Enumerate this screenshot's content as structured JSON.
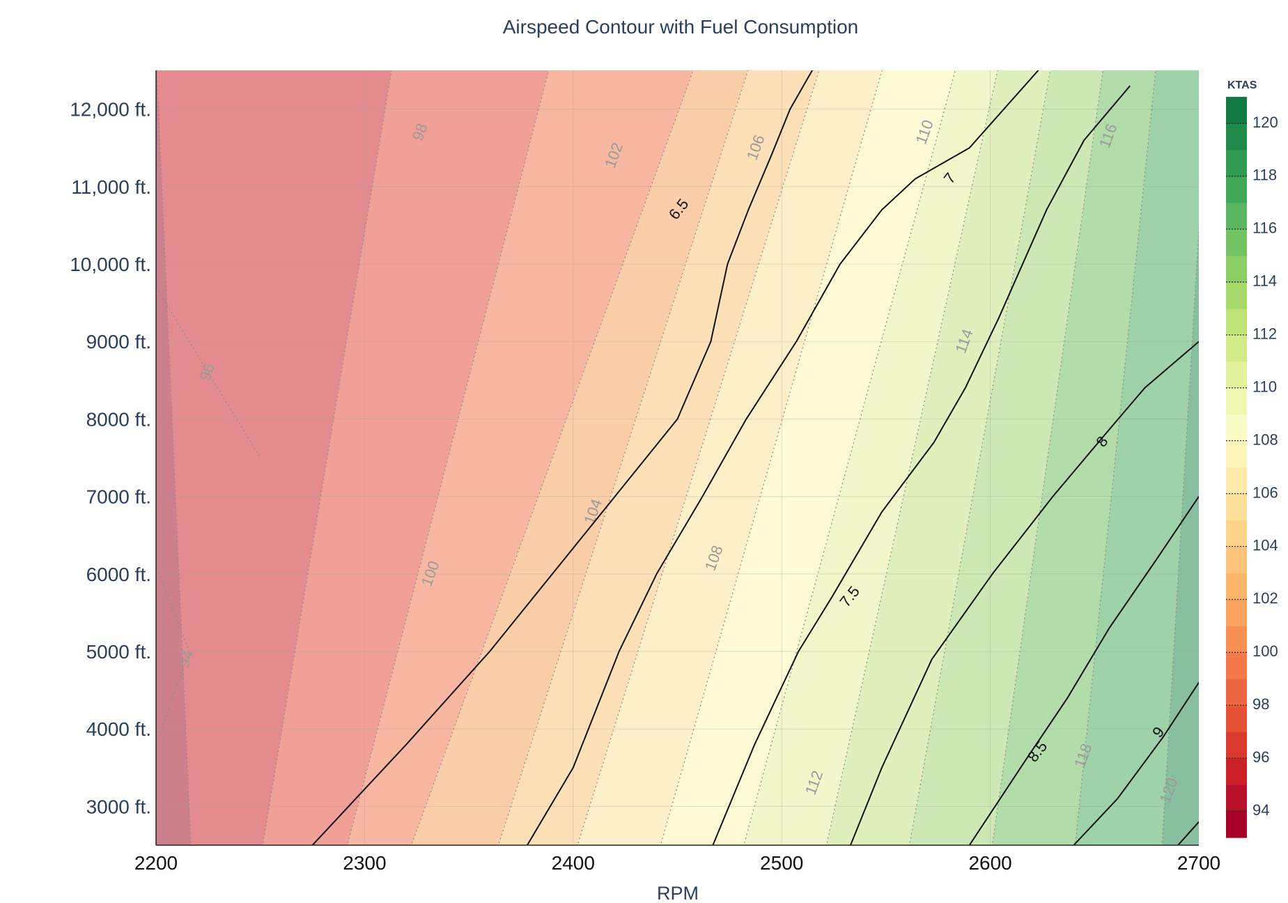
{
  "chart_data": {
    "type": "heatmap",
    "title": "Airspeed Contour with Fuel Consumption",
    "xlabel": "RPM",
    "ylabel": "",
    "xlim": [
      2200,
      2700
    ],
    "ylim": [
      2500,
      12500
    ],
    "x_ticks": [
      {
        "value": 2200,
        "label": "2200"
      },
      {
        "value": 2300,
        "label": "2300"
      },
      {
        "value": 2400,
        "label": "2400"
      },
      {
        "value": 2500,
        "label": "2500"
      },
      {
        "value": 2600,
        "label": "2600"
      },
      {
        "value": 2700,
        "label": "2700"
      }
    ],
    "y_ticks": [
      {
        "value": 3000,
        "label": "3000 ft."
      },
      {
        "value": 4000,
        "label": "4000 ft."
      },
      {
        "value": 5000,
        "label": "5000 ft."
      },
      {
        "value": 6000,
        "label": "6000 ft."
      },
      {
        "value": 7000,
        "label": "7000 ft."
      },
      {
        "value": 8000,
        "label": "8000 ft."
      },
      {
        "value": 9000,
        "label": "9000 ft."
      },
      {
        "value": 10000,
        "label": "10,000 ft."
      },
      {
        "value": 11000,
        "label": "11,000 ft."
      },
      {
        "value": 12000,
        "label": "12,000 ft."
      }
    ],
    "grid": true,
    "colorbar": {
      "title": "KTAS",
      "range": [
        93,
        121
      ],
      "colorscale": "RdYlGn",
      "ticks": [
        {
          "value": 94,
          "label": "94"
        },
        {
          "value": 96,
          "label": "96"
        },
        {
          "value": 98,
          "label": "98"
        },
        {
          "value": 100,
          "label": "100"
        },
        {
          "value": 102,
          "label": "102"
        },
        {
          "value": 104,
          "label": "104"
        },
        {
          "value": 106,
          "label": "106"
        },
        {
          "value": 108,
          "label": "108"
        },
        {
          "value": 110,
          "label": "110"
        },
        {
          "value": 112,
          "label": "112"
        },
        {
          "value": 114,
          "label": "114"
        },
        {
          "value": 116,
          "label": "116"
        },
        {
          "value": 118,
          "label": "118"
        },
        {
          "value": 120,
          "label": "120"
        }
      ]
    },
    "ktas_bands": [
      {
        "ktas": 94,
        "bottom_rpm": 2200,
        "top_rpm": 2200,
        "color": "#cd7f8c"
      },
      {
        "ktas": 96,
        "bottom_rpm": 2217,
        "top_rpm": 2200,
        "color": "#e38b8e"
      },
      {
        "ktas": 98,
        "bottom_rpm": 2250,
        "top_rpm": 2314,
        "color": "#f0a096"
      },
      {
        "ktas": 100,
        "bottom_rpm": 2290,
        "top_rpm": 2390,
        "color": "#f8b7a0"
      },
      {
        "ktas": 102,
        "bottom_rpm": 2320,
        "top_rpm": 2460,
        "color": "#fbceaa"
      },
      {
        "ktas": 104,
        "bottom_rpm": 2362,
        "top_rpm": 2486,
        "color": "#fde0b8"
      },
      {
        "ktas": 106,
        "bottom_rpm": 2400,
        "top_rpm": 2520,
        "color": "#fdf0c8"
      },
      {
        "ktas": 108,
        "bottom_rpm": 2440,
        "top_rpm": 2550,
        "color": "#fefad6"
      },
      {
        "ktas": 110,
        "bottom_rpm": 2480,
        "top_rpm": 2585,
        "color": "#f1f6cb"
      },
      {
        "ktas": 112,
        "bottom_rpm": 2520,
        "top_rpm": 2605,
        "color": "#e0f0bc"
      },
      {
        "ktas": 114,
        "bottom_rpm": 2560,
        "top_rpm": 2630,
        "color": "#cde8b5"
      },
      {
        "ktas": 116,
        "bottom_rpm": 2600,
        "top_rpm": 2655,
        "color": "#b3dcab"
      },
      {
        "ktas": 118,
        "bottom_rpm": 2640,
        "top_rpm": 2680,
        "color": "#9ed2a8"
      },
      {
        "ktas": 120,
        "bottom_rpm": 2682,
        "top_rpm": 2705,
        "color": "#88c09f"
      },
      {
        "ktas": 121,
        "bottom_rpm": 2700,
        "top_rpm": 2725,
        "color": "#7aaa8e"
      }
    ],
    "ktas_labels": [
      {
        "label": "94",
        "rpm": 2215,
        "alt": 4900
      },
      {
        "label": "96",
        "rpm": 2225,
        "alt": 8600
      },
      {
        "label": "98",
        "rpm": 2327,
        "alt": 11700
      },
      {
        "label": "100",
        "rpm": 2332,
        "alt": 6000
      },
      {
        "label": "102",
        "rpm": 2420,
        "alt": 11400
      },
      {
        "label": "104",
        "rpm": 2410,
        "alt": 6800
      },
      {
        "label": "106",
        "rpm": 2488,
        "alt": 11500
      },
      {
        "label": "108",
        "rpm": 2468,
        "alt": 6200
      },
      {
        "label": "110",
        "rpm": 2569,
        "alt": 11700
      },
      {
        "label": "112",
        "rpm": 2516,
        "alt": 3300
      },
      {
        "label": "114",
        "rpm": 2588,
        "alt": 9000
      },
      {
        "label": "116",
        "rpm": 2657,
        "alt": 11650
      },
      {
        "label": "118",
        "rpm": 2645,
        "alt": 3650
      },
      {
        "label": "120",
        "rpm": 2686,
        "alt": 3200
      }
    ],
    "fuel_contours": [
      {
        "label": "6.5",
        "points": [
          [
            2275,
            2500
          ],
          [
            2320,
            3800
          ],
          [
            2360,
            5000
          ],
          [
            2390,
            6000
          ],
          [
            2420,
            7000
          ],
          [
            2450,
            8000
          ],
          [
            2466,
            9000
          ],
          [
            2474,
            10000
          ],
          [
            2484,
            10700
          ],
          [
            2495,
            11400
          ],
          [
            2504,
            12000
          ],
          [
            2521,
            12800
          ]
        ]
      },
      {
        "label": "7",
        "points": [
          [
            2378,
            2500
          ],
          [
            2400,
            3500
          ],
          [
            2422,
            5000
          ],
          [
            2440,
            6000
          ],
          [
            2462,
            7000
          ],
          [
            2483,
            8000
          ],
          [
            2507,
            9000
          ],
          [
            2528,
            10000
          ],
          [
            2548,
            10700
          ],
          [
            2564,
            11100
          ],
          [
            2590,
            11500
          ],
          [
            2623,
            12500
          ]
        ]
      },
      {
        "label": "7.5",
        "points": [
          [
            2467,
            2500
          ],
          [
            2487,
            3800
          ],
          [
            2508,
            5000
          ],
          [
            2524,
            5700
          ],
          [
            2548,
            6800
          ],
          [
            2573,
            7700
          ],
          [
            2588,
            8400
          ],
          [
            2604,
            9300
          ],
          [
            2627,
            10700
          ],
          [
            2645,
            11600
          ],
          [
            2667,
            12300
          ]
        ]
      },
      {
        "label": "8",
        "points": [
          [
            2533,
            2500
          ],
          [
            2548,
            3500
          ],
          [
            2572,
            4900
          ],
          [
            2601,
            6000
          ],
          [
            2630,
            7000
          ],
          [
            2655,
            7800
          ],
          [
            2674,
            8400
          ],
          [
            2700,
            9000
          ]
        ]
      },
      {
        "label": "8.5",
        "points": [
          [
            2590,
            2500
          ],
          [
            2617,
            3600
          ],
          [
            2637,
            4400
          ],
          [
            2657,
            5300
          ],
          [
            2680,
            6200
          ],
          [
            2700,
            7000
          ]
        ]
      },
      {
        "label": "9",
        "points": [
          [
            2640,
            2500
          ],
          [
            2661,
            3100
          ],
          [
            2683,
            3900
          ],
          [
            2700,
            4600
          ]
        ]
      },
      {
        "label": "",
        "points": [
          [
            2690,
            2500
          ],
          [
            2700,
            2800
          ]
        ]
      }
    ],
    "fuel_labels": [
      {
        "label": "6.5",
        "rpm": 2451,
        "alt": 10700
      },
      {
        "label": "7",
        "rpm": 2581,
        "alt": 11100
      },
      {
        "label": "7.5",
        "rpm": 2533,
        "alt": 5700
      },
      {
        "label": "8",
        "rpm": 2654,
        "alt": 7700
      },
      {
        "label": "8.5",
        "rpm": 2623,
        "alt": 3700
      },
      {
        "label": "9",
        "rpm": 2681,
        "alt": 3950
      }
    ]
  }
}
